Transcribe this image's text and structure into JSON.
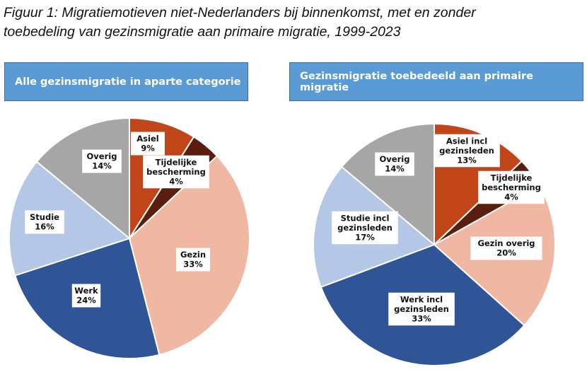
{
  "figure_title_line1": "Figuur 1: Migratiemotieven niet-Nederlanders bij binnenkomst, met en zonder",
  "figure_title_line2": "toebedeling van gezinsmigratie aan primaire migratie, 1999-2023",
  "chart_data": [
    {
      "type": "pie",
      "title": "Alle gezinsmigratie in aparte categorie",
      "slices": [
        {
          "label": [
            "Asiel"
          ],
          "value": 9,
          "text": "9%",
          "color": "#C0461A"
        },
        {
          "label": [
            "Tijdelijke",
            "bescherming"
          ],
          "value": 4,
          "text": "4%",
          "color": "#5A1E0E"
        },
        {
          "label": [
            "Gezin"
          ],
          "value": 33,
          "text": "33%",
          "color": "#F0B8A2"
        },
        {
          "label": [
            "Werk"
          ],
          "value": 24,
          "text": "24%",
          "color": "#2F5597"
        },
        {
          "label": [
            "Studie"
          ],
          "value": 16,
          "text": "16%",
          "color": "#B4C7E7"
        },
        {
          "label": [
            "Overig"
          ],
          "value": 14,
          "text": "14%",
          "color": "#A6A6A6"
        }
      ]
    },
    {
      "type": "pie",
      "title": "Gezinsmigratie toebedeeld aan primaire migratie",
      "slices": [
        {
          "label": [
            "Asiel incl",
            "gezinsleden"
          ],
          "value": 13,
          "text": "13%",
          "color": "#C0461A"
        },
        {
          "label": [
            "Tijdelijke",
            "bescherming"
          ],
          "value": 4,
          "text": "4%",
          "color": "#5A1E0E"
        },
        {
          "label": [
            "Gezin overig"
          ],
          "value": 20,
          "text": "20%",
          "color": "#F0B8A2"
        },
        {
          "label": [
            "Werk incl",
            "gezinsleden"
          ],
          "value": 33,
          "text": "33%",
          "color": "#2F5597"
        },
        {
          "label": [
            "Studie incl",
            "gezinsleden"
          ],
          "value": 17,
          "text": "17%",
          "color": "#B4C7E7"
        },
        {
          "label": [
            "Overig"
          ],
          "value": 14,
          "text": "14%",
          "color": "#A6A6A6"
        }
      ]
    }
  ]
}
